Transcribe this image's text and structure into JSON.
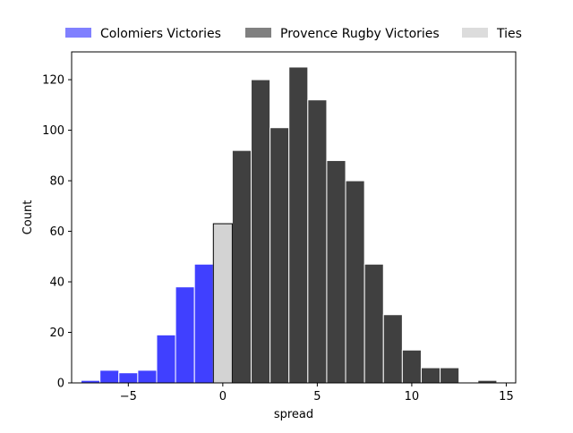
{
  "chart_data": {
    "type": "bar",
    "title": "",
    "xlabel": "spread",
    "ylabel": "Count",
    "xlim": [
      -8.0,
      15.5
    ],
    "ylim": [
      0,
      131
    ],
    "bin_width": 1,
    "xticks": [
      -5,
      0,
      5,
      10,
      15
    ],
    "xtick_labels": [
      "−5",
      "0",
      "5",
      "10",
      "15"
    ],
    "yticks": [
      0,
      20,
      40,
      60,
      80,
      100,
      120
    ],
    "ytick_labels": [
      "0",
      "20",
      "40",
      "60",
      "80",
      "100",
      "120"
    ],
    "grid": false,
    "legend_position": "top",
    "series": [
      {
        "name": "Colomiers Victories",
        "color": "#4040ff",
        "legend_color": "#8080ff",
        "edge_color": "#ffffff",
        "x": [
          -7,
          -6,
          -5,
          -4,
          -3,
          -2,
          -1
        ],
        "values": [
          1,
          5,
          4,
          5,
          19,
          38,
          47
        ]
      },
      {
        "name": "Provence Rugby Victories",
        "color": "#404040",
        "legend_color": "#808080",
        "edge_color": "#ffffff",
        "x": [
          1,
          2,
          3,
          4,
          5,
          6,
          7,
          8,
          9,
          10,
          11,
          12,
          13,
          14
        ],
        "values": [
          92,
          120,
          101,
          125,
          112,
          88,
          80,
          47,
          27,
          13,
          6,
          6,
          0,
          1
        ]
      },
      {
        "name": "Ties",
        "color": "#d3d3d3",
        "legend_color": "#dcdcdc",
        "edge_color": "#000000",
        "x": [
          0
        ],
        "values": [
          63
        ]
      }
    ]
  }
}
